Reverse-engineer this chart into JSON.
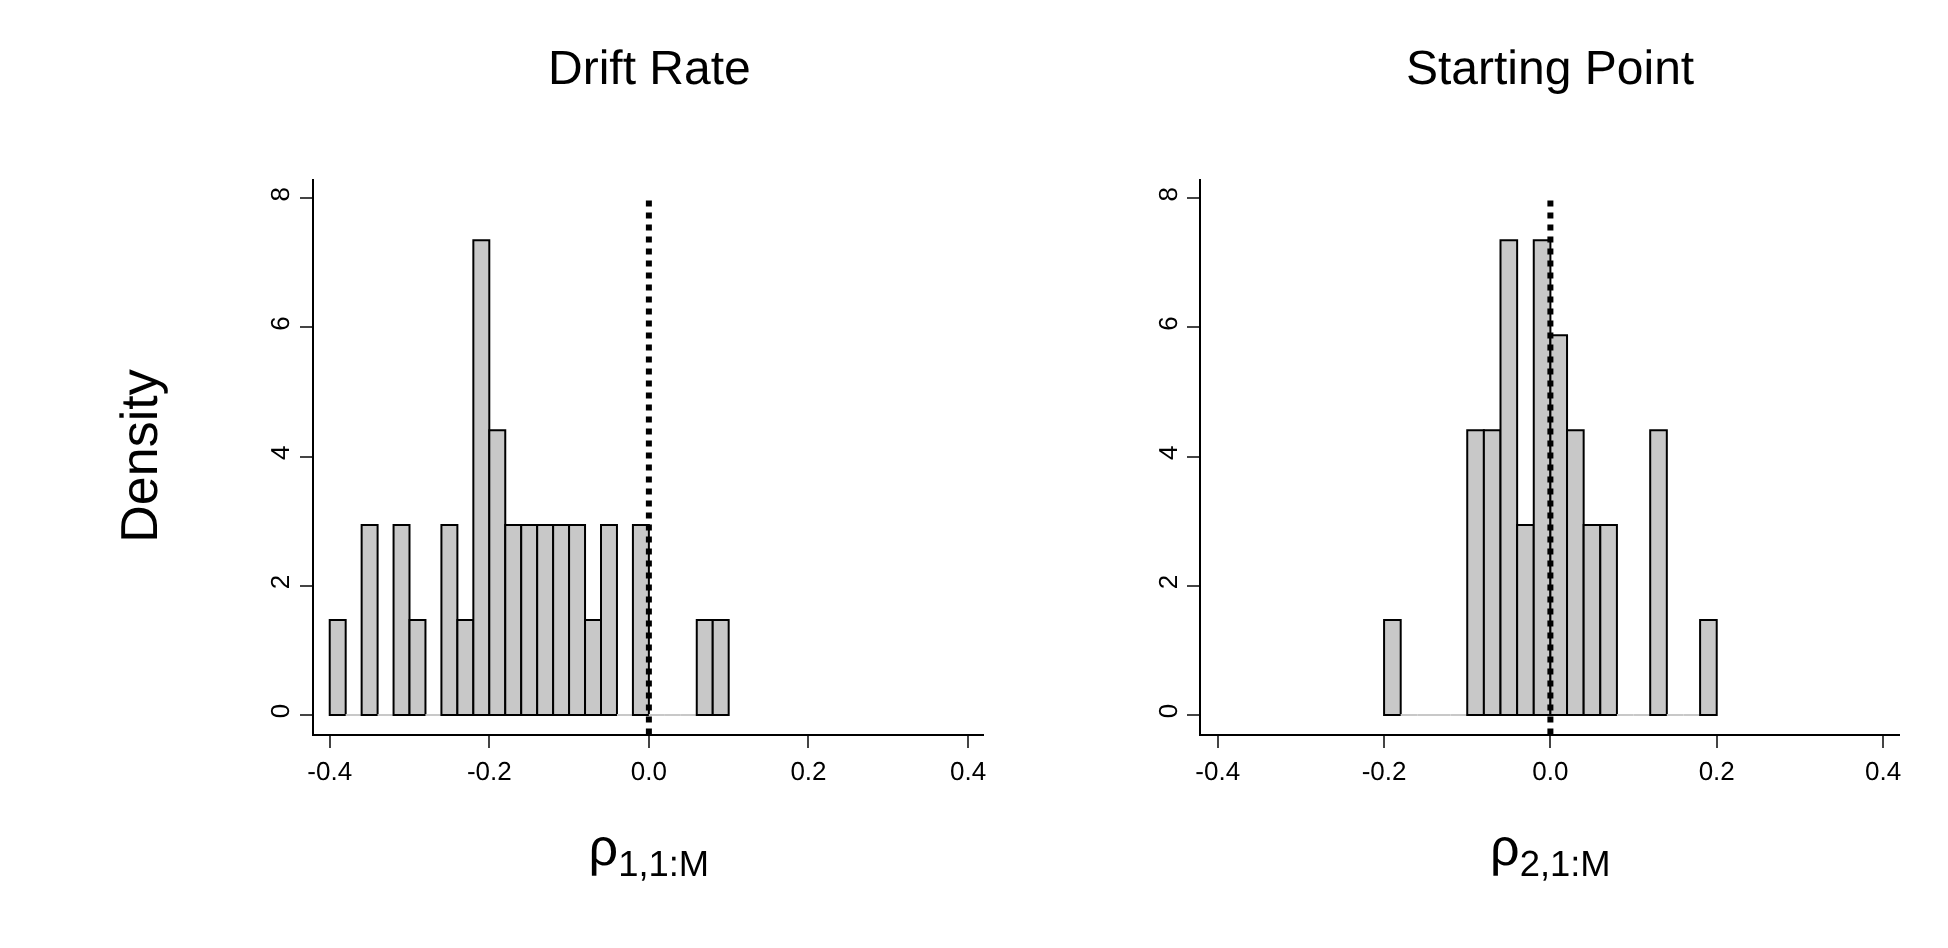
{
  "chart_data": [
    {
      "type": "histogram",
      "title": "Drift Rate",
      "xlabel": "ρ$_{1,1:M}$",
      "ylabel": "Density",
      "color": "#c8c8c8",
      "bins": [
        -0.4,
        -0.38,
        -0.36,
        -0.34,
        -0.32,
        -0.3,
        -0.28,
        -0.26,
        -0.24,
        -0.22,
        -0.2,
        -0.18,
        -0.16,
        -0.14,
        -0.12,
        -0.1,
        -0.08,
        -0.06,
        -0.04,
        -0.02,
        0.0,
        0.02,
        0.04,
        0.06,
        0.08,
        0.1
      ],
      "values": [
        1.47,
        0,
        2.94,
        0,
        2.94,
        1.47,
        0,
        2.94,
        1.47,
        7.35,
        4.41,
        2.94,
        2.94,
        2.94,
        2.94,
        2.94,
        1.47,
        2.94,
        0,
        2.94,
        0,
        0,
        0,
        1.47,
        1.47
      ],
      "xlim": [
        -0.42,
        0.42
      ],
      "xticks": [
        {
          "value": -0.4,
          "label": "-0.4"
        },
        {
          "value": -0.2,
          "label": "-0.2"
        },
        {
          "value": 0,
          "label": "0.0"
        },
        {
          "value": 0.2,
          "label": "0.2"
        },
        {
          "value": 0.4,
          "label": "0.4"
        }
      ],
      "ylim": [
        -0.3,
        8.3
      ],
      "yticks": [
        0,
        2,
        4,
        6,
        8
      ],
      "ref_lines": [
        {
          "axis": "x",
          "value": 0,
          "line_style": "dotted",
          "color": "#000000"
        }
      ]
    },
    {
      "type": "histogram",
      "title": "Starting Point",
      "xlabel": "ρ$_{2,1:M}$",
      "color": "#c8c8c8",
      "bins": [
        -0.2,
        -0.18,
        -0.16,
        -0.14,
        -0.12,
        -0.1,
        -0.08,
        -0.06,
        -0.04,
        -0.02,
        0.0,
        0.02,
        0.04,
        0.06,
        0.08,
        0.1,
        0.12,
        0.14,
        0.16,
        0.18,
        0.2
      ],
      "values": [
        1.47,
        0,
        0,
        0,
        0,
        4.41,
        4.41,
        7.35,
        2.94,
        7.35,
        5.88,
        4.41,
        2.94,
        2.94,
        0,
        0,
        4.41,
        0,
        0,
        1.47
      ],
      "xlim": [
        -0.42,
        0.42
      ],
      "xticks": [
        {
          "value": -0.4,
          "label": "-0.4"
        },
        {
          "value": -0.2,
          "label": "-0.2"
        },
        {
          "value": 0,
          "label": "0.0"
        },
        {
          "value": 0.2,
          "label": "0.2"
        },
        {
          "value": 0.4,
          "label": "0.4"
        }
      ],
      "ylim": [
        -0.3,
        8.3
      ],
      "yticks": [
        0,
        2,
        4,
        6,
        8
      ],
      "ref_lines": [
        {
          "axis": "x",
          "value": 0,
          "line_style": "dotted",
          "color": "#000000"
        }
      ]
    }
  ]
}
